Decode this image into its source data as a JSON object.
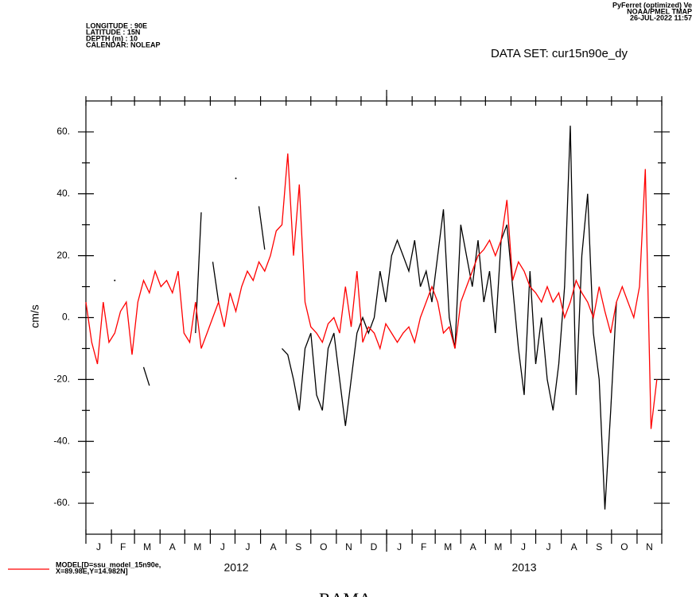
{
  "chart_data": {
    "type": "line",
    "title": "DATA SET: cur15n90e_dy",
    "header_left": [
      "LONGITUDE : 90E",
      "LATITUDE : 15N",
      "DEPTH (m) : 10",
      "CALENDAR: NOLEAP"
    ],
    "header_right": [
      "PyFerret (optimized) Ve",
      "NOAA/PMEL TMAP",
      "26-JUL-2022 11:57"
    ],
    "y_label": "cm/s",
    "xlim": [
      0,
      699
    ],
    "ylim": [
      -70,
      70
    ],
    "xticks": [
      0,
      31,
      59,
      90,
      120,
      151,
      181,
      212,
      243,
      273,
      304,
      334,
      365,
      396,
      424,
      455,
      485,
      516,
      546,
      577,
      608,
      638,
      669,
      699
    ],
    "year_ticks": [
      365
    ],
    "month_labels": [
      {
        "value": 15.5,
        "label": "J"
      },
      {
        "value": 45,
        "label": "F"
      },
      {
        "value": 74.5,
        "label": "M"
      },
      {
        "value": 105,
        "label": "A"
      },
      {
        "value": 135.5,
        "label": "M"
      },
      {
        "value": 166,
        "label": "J"
      },
      {
        "value": 196.5,
        "label": "J"
      },
      {
        "value": 227.5,
        "label": "A"
      },
      {
        "value": 258,
        "label": "S"
      },
      {
        "value": 288.5,
        "label": "O"
      },
      {
        "value": 319,
        "label": "N"
      },
      {
        "value": 349.5,
        "label": "D"
      },
      {
        "value": 380.5,
        "label": "J"
      },
      {
        "value": 410,
        "label": "F"
      },
      {
        "value": 439.5,
        "label": "M"
      },
      {
        "value": 470,
        "label": "A"
      },
      {
        "value": 500.5,
        "label": "M"
      },
      {
        "value": 531,
        "label": "J"
      },
      {
        "value": 561.5,
        "label": "J"
      },
      {
        "value": 592.5,
        "label": "A"
      },
      {
        "value": 623,
        "label": "S"
      },
      {
        "value": 653.5,
        "label": "O"
      },
      {
        "value": 684,
        "label": "N"
      }
    ],
    "year_labels": [
      {
        "value": 182.5,
        "label": "2012"
      },
      {
        "value": 532,
        "label": "2013"
      }
    ],
    "yticks": [
      {
        "value": -60,
        "label": "-60."
      },
      {
        "value": -40,
        "label": "-40."
      },
      {
        "value": -20,
        "label": "-20."
      },
      {
        "value": 0,
        "label": "0."
      },
      {
        "value": 20,
        "label": "20."
      },
      {
        "value": 40,
        "label": "40."
      },
      {
        "value": 60,
        "label": "60."
      }
    ],
    "yminorticks": [
      -50,
      -30,
      -10,
      10,
      30,
      50
    ],
    "x": [
      0,
      7,
      14,
      21,
      28,
      35,
      42,
      49,
      56,
      63,
      70,
      77,
      84,
      91,
      98,
      105,
      112,
      119,
      126,
      133,
      140,
      147,
      154,
      161,
      168,
      175,
      182,
      189,
      196,
      203,
      210,
      217,
      224,
      231,
      238,
      245,
      252,
      259,
      266,
      273,
      280,
      287,
      294,
      301,
      308,
      315,
      322,
      329,
      336,
      343,
      350,
      357,
      364,
      371,
      378,
      385,
      392,
      399,
      406,
      413,
      420,
      427,
      434,
      441,
      448,
      455,
      462,
      469,
      476,
      483,
      490,
      497,
      504,
      511,
      518,
      525,
      532,
      539,
      546,
      553,
      560,
      567,
      574,
      581,
      588,
      595,
      602,
      609,
      616,
      623,
      630,
      637,
      644,
      651,
      658,
      665,
      672,
      679,
      686,
      693
    ],
    "series": [
      {
        "name": [
          "MODEL[D=ssu_model_15n90e,",
          "X=89.98E,Y=14.982N]"
        ],
        "color": "#ff0000",
        "values": [
          5,
          -8,
          -15,
          5,
          -8,
          -5,
          2,
          5,
          -12,
          5,
          12,
          8,
          15,
          10,
          12,
          8,
          15,
          -5,
          -8,
          5,
          -10,
          -5,
          0,
          5,
          -3,
          8,
          2,
          10,
          15,
          12,
          18,
          15,
          20,
          28,
          30,
          53,
          20,
          43,
          5,
          -3,
          -5,
          -8,
          -2,
          0,
          -5,
          10,
          -3,
          15,
          -8,
          -3,
          -5,
          -10,
          -2,
          -5,
          -8,
          -5,
          -3,
          -8,
          0,
          5,
          10,
          5,
          -5,
          -3,
          -10,
          5,
          10,
          15,
          20,
          22,
          25,
          20,
          25,
          38,
          12,
          18,
          15,
          10,
          8,
          5,
          10,
          5,
          8,
          0,
          5,
          12,
          8,
          5,
          0,
          10,
          2,
          -5,
          5,
          10,
          5,
          0,
          10,
          48,
          -36,
          -20
        ]
      },
      {
        "name": [
          "RAMA"
        ],
        "color": "#000000",
        "values": [
          null,
          null,
          null,
          null,
          null,
          12,
          null,
          null,
          null,
          null,
          -16,
          -22,
          null,
          null,
          null,
          null,
          null,
          null,
          null,
          -5,
          34,
          null,
          18,
          5,
          null,
          null,
          45,
          null,
          null,
          null,
          36,
          22,
          null,
          null,
          -10,
          -12,
          -20,
          -30,
          -10,
          -5,
          -25,
          -30,
          -10,
          -5,
          -20,
          -35,
          -20,
          -5,
          0,
          -5,
          0,
          15,
          5,
          20,
          25,
          20,
          15,
          25,
          10,
          15,
          5,
          20,
          35,
          0,
          -10,
          30,
          20,
          10,
          25,
          5,
          15,
          -5,
          25,
          30,
          10,
          -10,
          -25,
          15,
          -15,
          0,
          -20,
          -30,
          -15,
          10,
          62,
          -25,
          20,
          40,
          -5,
          -20,
          -62,
          -30,
          5,
          null,
          null,
          null,
          null,
          null,
          null,
          null
        ]
      }
    ]
  }
}
